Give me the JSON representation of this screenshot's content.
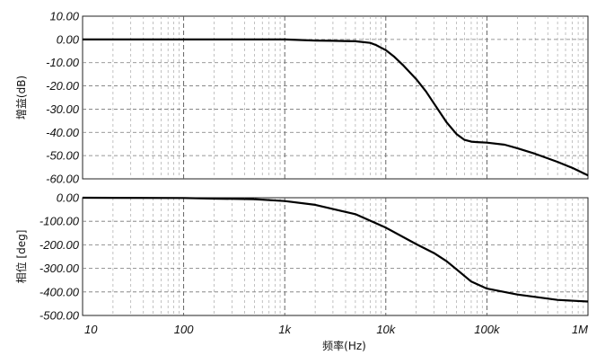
{
  "chart_data": [
    {
      "type": "line",
      "panel": "gain",
      "xscale": "log",
      "xlim": [
        10,
        1000000
      ],
      "ylabel": "增益(dB)",
      "ylim": [
        -60,
        10
      ],
      "yticks": [
        "10.00",
        "0.00",
        "-10.00",
        "-20.00",
        "-30.00",
        "-40.00",
        "-50.00",
        "-60.00"
      ],
      "grid": true,
      "series": [
        {
          "x": [
            10,
            100,
            1000,
            2000,
            3000,
            5000,
            7000,
            8000,
            10000,
            12000,
            15000,
            20000,
            25000,
            30000,
            40000,
            50000,
            60000,
            70000,
            80000,
            100000,
            150000,
            200000,
            300000,
            500000,
            700000,
            1000000
          ],
          "values": [
            0,
            0,
            0,
            -0.5,
            -0.6,
            -0.8,
            -1.5,
            -2.4,
            -4.6,
            -7.3,
            -11.3,
            -17.1,
            -22.4,
            -27.6,
            -35.7,
            -40.7,
            -43.2,
            -44.0,
            -44.2,
            -44.4,
            -45.3,
            -46.8,
            -49.2,
            -52.7,
            -55.3,
            -58.5
          ]
        }
      ]
    },
    {
      "type": "line",
      "panel": "phase",
      "xscale": "log",
      "xlim": [
        10,
        1000000
      ],
      "xlabel": "频率(Hz)",
      "xticks": [
        "10",
        "100",
        "1k",
        "10k",
        "100k",
        "1M"
      ],
      "ylabel": "相位 [deg]",
      "ylim": [
        -500,
        0
      ],
      "yticks": [
        "0.00",
        "-100.00",
        "-200.00",
        "-300.00",
        "-400.00",
        "-500.00"
      ],
      "grid": true,
      "series": [
        {
          "x": [
            10,
            100,
            200,
            500,
            1000,
            2000,
            5000,
            10000,
            20000,
            30000,
            40000,
            50000,
            70000,
            100000,
            200000,
            500000,
            1000000
          ],
          "values": [
            0,
            -1,
            -4,
            -6,
            -14,
            -30,
            -70,
            -127,
            -197,
            -235,
            -270,
            -304,
            -356,
            -386,
            -411,
            -434,
            -441
          ]
        }
      ]
    }
  ]
}
